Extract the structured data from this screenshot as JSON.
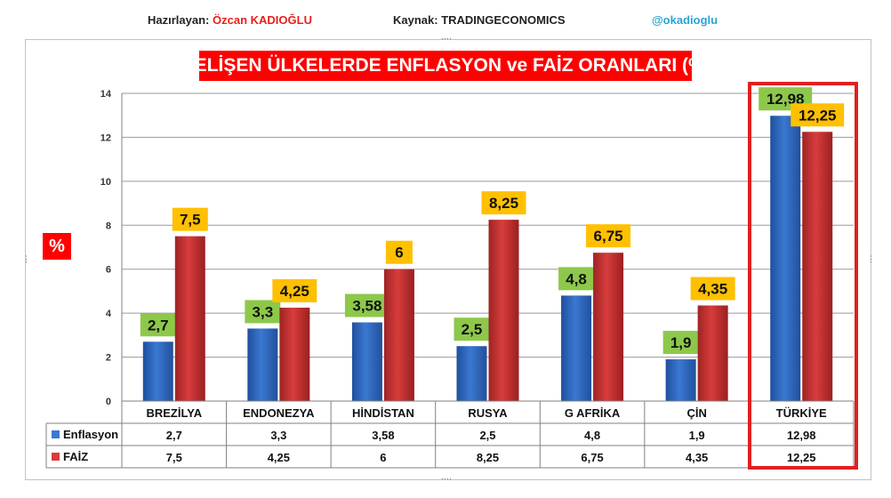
{
  "header": {
    "prepared_label": "Hazırlayan:",
    "prepared_name": "Özcan KADIOĞLU",
    "source_label": "Kaynak: TRADINGECONOMICS",
    "handle": "@okadioglu"
  },
  "colors": {
    "series_enflasyon": "#3a78d2",
    "series_faiz": "#d83c3c",
    "label_enflasyon_bg": "#8dc84b",
    "label_faiz_bg": "#ffc000",
    "title_bg": "#ff0000",
    "highlight_border": "#e02020"
  },
  "chart_data": {
    "type": "bar",
    "title": "GELİŞEN ÜLKELERDE ENFLASYON ve FAİZ ORANLARI (%)",
    "ylabel": "%",
    "xlabel": "",
    "ylim": [
      0,
      14
    ],
    "yticks": [
      0,
      2,
      4,
      6,
      8,
      10,
      12,
      14
    ],
    "grid": true,
    "categories": [
      "BREZİLYA",
      "ENDONEZYA",
      "HİNDİSTAN",
      "RUSYA",
      "G AFRİKA",
      "ÇİN",
      "TÜRKİYE"
    ],
    "series": [
      {
        "name": "Enflasyon",
        "values": [
          2.7,
          3.3,
          3.58,
          2.5,
          4.8,
          1.9,
          12.98
        ],
        "labels": [
          "2,7",
          "3,3",
          "3,58",
          "2,5",
          "4,8",
          "1,9",
          "12,98"
        ]
      },
      {
        "name": "FAİZ",
        "values": [
          7.5,
          4.25,
          6,
          8.25,
          6.75,
          4.35,
          12.25
        ],
        "labels": [
          "7,5",
          "4,25",
          "6",
          "8,25",
          "6,75",
          "4,35",
          "12,25"
        ]
      }
    ],
    "highlighted_category": "TÜRKİYE",
    "data_table": true
  }
}
